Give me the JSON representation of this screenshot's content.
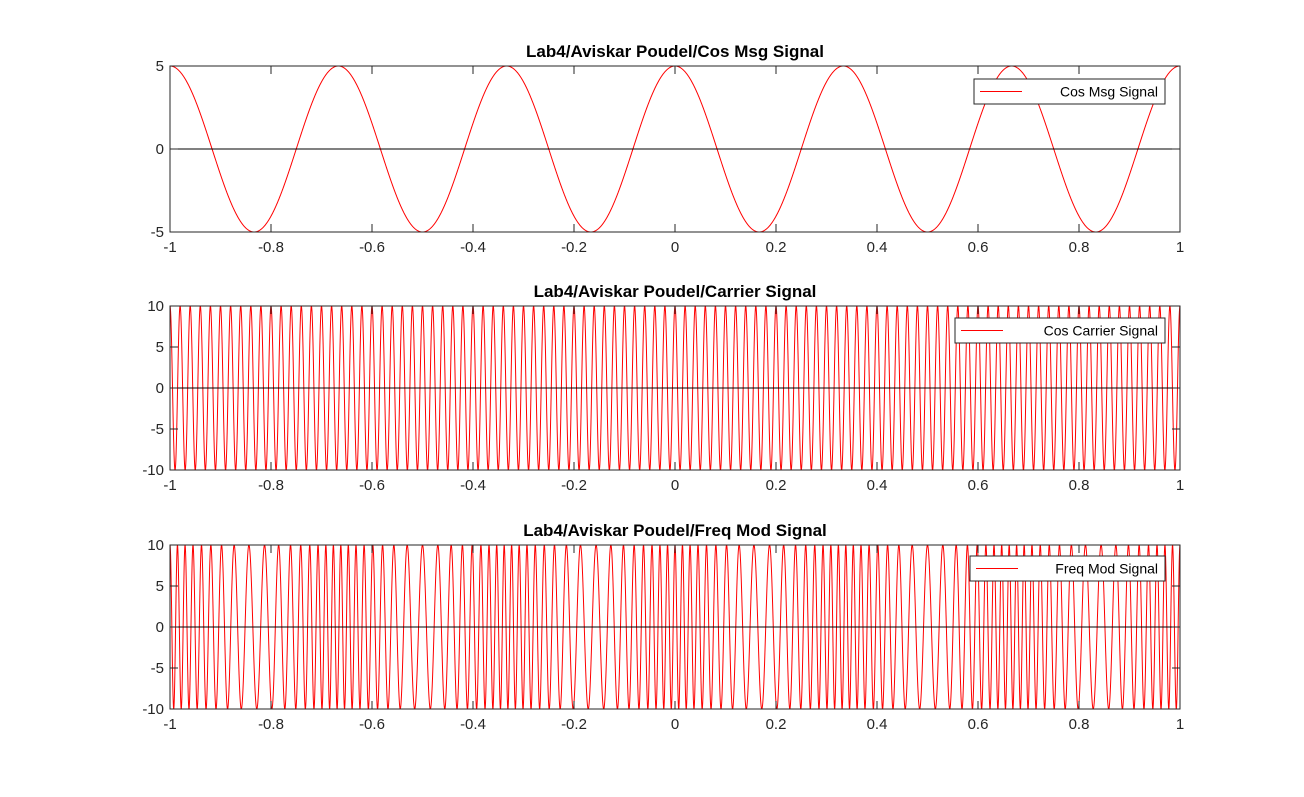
{
  "figure": {
    "background": "#ffffff",
    "axes_color": "#262626",
    "signal_color": "#ff0000",
    "zero_line_color": "#000000"
  },
  "chart_data": [
    {
      "type": "line",
      "title": "Lab4/Aviskar Poudel/Cos Msg Signal",
      "xlabel": "",
      "ylabel": "",
      "xlim": [
        -1,
        1
      ],
      "ylim": [
        -5,
        5
      ],
      "xticks": [
        -1,
        -0.8,
        -0.6,
        -0.4,
        -0.2,
        0,
        0.2,
        0.4,
        0.6,
        0.8,
        1
      ],
      "xtick_labels": [
        "-1",
        "-0.8",
        "-0.6",
        "-0.4",
        "-0.2",
        "0",
        "0.2",
        "0.4",
        "0.6",
        "0.8",
        "1"
      ],
      "yticks": [
        -5,
        0,
        5
      ],
      "ytick_labels": [
        "-5",
        "0",
        "5"
      ],
      "grid": false,
      "legend_position": "top-right",
      "zero_line": true,
      "series": [
        {
          "name": "Cos Msg Signal",
          "color": "#ff0000",
          "function": "cos",
          "amplitude": 5,
          "frequency_hz": 3,
          "x": [
            -1,
            -0.9167,
            -0.8333,
            -0.75,
            -0.6667,
            -0.5833,
            -0.5,
            -0.4167,
            -0.3333,
            -0.25,
            -0.1667,
            -0.0833,
            0,
            0.0833,
            0.1667,
            0.25,
            0.3333,
            0.4167,
            0.5,
            0.5833,
            0.6667,
            0.75,
            0.8333,
            0.9167,
            1
          ],
          "y": [
            5,
            0,
            -5,
            0,
            5,
            0,
            -5,
            0,
            5,
            0,
            -5,
            0,
            5,
            0,
            -5,
            0,
            5,
            0,
            -5,
            0,
            5,
            0,
            -5,
            0,
            5
          ]
        }
      ]
    },
    {
      "type": "line",
      "title": "Lab4/Aviskar Poudel/Carrier Signal",
      "xlabel": "",
      "ylabel": "",
      "xlim": [
        -1,
        1
      ],
      "ylim": [
        -10,
        10
      ],
      "xticks": [
        -1,
        -0.8,
        -0.6,
        -0.4,
        -0.2,
        0,
        0.2,
        0.4,
        0.6,
        0.8,
        1
      ],
      "xtick_labels": [
        "-1",
        "-0.8",
        "-0.6",
        "-0.4",
        "-0.2",
        "0",
        "0.2",
        "0.4",
        "0.6",
        "0.8",
        "1"
      ],
      "yticks": [
        -10,
        -5,
        0,
        5,
        10
      ],
      "ytick_labels": [
        "-10",
        "-5",
        "0",
        "5",
        "10"
      ],
      "grid": false,
      "legend_position": "top-right",
      "zero_line": true,
      "series": [
        {
          "name": "Cos Carrier Signal",
          "color": "#ff0000",
          "function": "cos",
          "amplitude": 10,
          "frequency_hz": 50
        }
      ]
    },
    {
      "type": "line",
      "title": "Lab4/Aviskar Poudel/Freq Mod Signal",
      "xlabel": "",
      "ylabel": "",
      "xlim": [
        -1,
        1
      ],
      "ylim": [
        -10,
        10
      ],
      "xticks": [
        -1,
        -0.8,
        -0.6,
        -0.4,
        -0.2,
        0,
        0.2,
        0.4,
        0.6,
        0.8,
        1
      ],
      "xtick_labels": [
        "-1",
        "-0.8",
        "-0.6",
        "-0.4",
        "-0.2",
        "0",
        "0.2",
        "0.4",
        "0.6",
        "0.8",
        "1"
      ],
      "yticks": [
        -10,
        -5,
        0,
        5,
        10
      ],
      "ytick_labels": [
        "-10",
        "-5",
        "0",
        "5",
        "10"
      ],
      "grid": false,
      "legend_position": "top-right",
      "zero_line": true,
      "series": [
        {
          "name": "Freq Mod Signal",
          "color": "#ff0000",
          "function": "fm_cos",
          "amplitude": 10,
          "carrier_frequency_hz": 50,
          "message_frequency_hz": 3,
          "message_amplitude": 5,
          "modulation_sensitivity": 6
        }
      ]
    }
  ]
}
